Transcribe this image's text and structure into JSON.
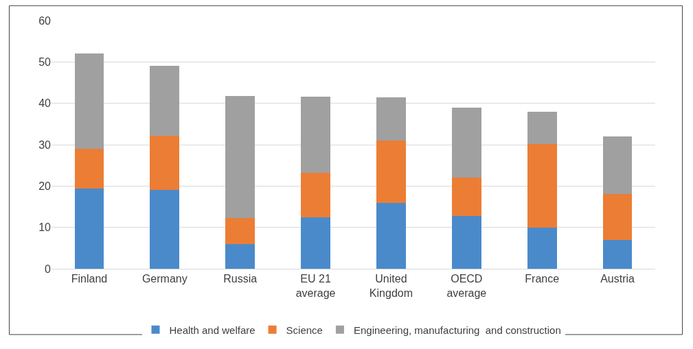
{
  "chart_data": {
    "type": "bar",
    "stacked": true,
    "categories": [
      "Finland",
      "Germany",
      "Russia",
      "EU 21\naverage",
      "United\nKingdom",
      "OECD\naverage",
      "France",
      "Austria"
    ],
    "series": [
      {
        "name": "Health and welfare",
        "color": "#4a8acb",
        "values": [
          19.4,
          19.0,
          5.9,
          12.5,
          15.9,
          12.8,
          9.9,
          7.0
        ]
      },
      {
        "name": "Science",
        "color": "#ec7d35",
        "values": [
          9.6,
          13.1,
          6.4,
          10.7,
          15.1,
          9.3,
          20.3,
          11.0
        ]
      },
      {
        "name": "Engineering, manufacturing  and construction",
        "color": "#a0a0a0",
        "values": [
          23.0,
          16.9,
          29.5,
          18.4,
          10.4,
          16.8,
          7.7,
          14.0
        ]
      }
    ],
    "ylim": [
      0,
      60
    ],
    "yticks": [
      0,
      10,
      20,
      30,
      40,
      50,
      60
    ],
    "grid": "y",
    "legend": "bottom"
  }
}
